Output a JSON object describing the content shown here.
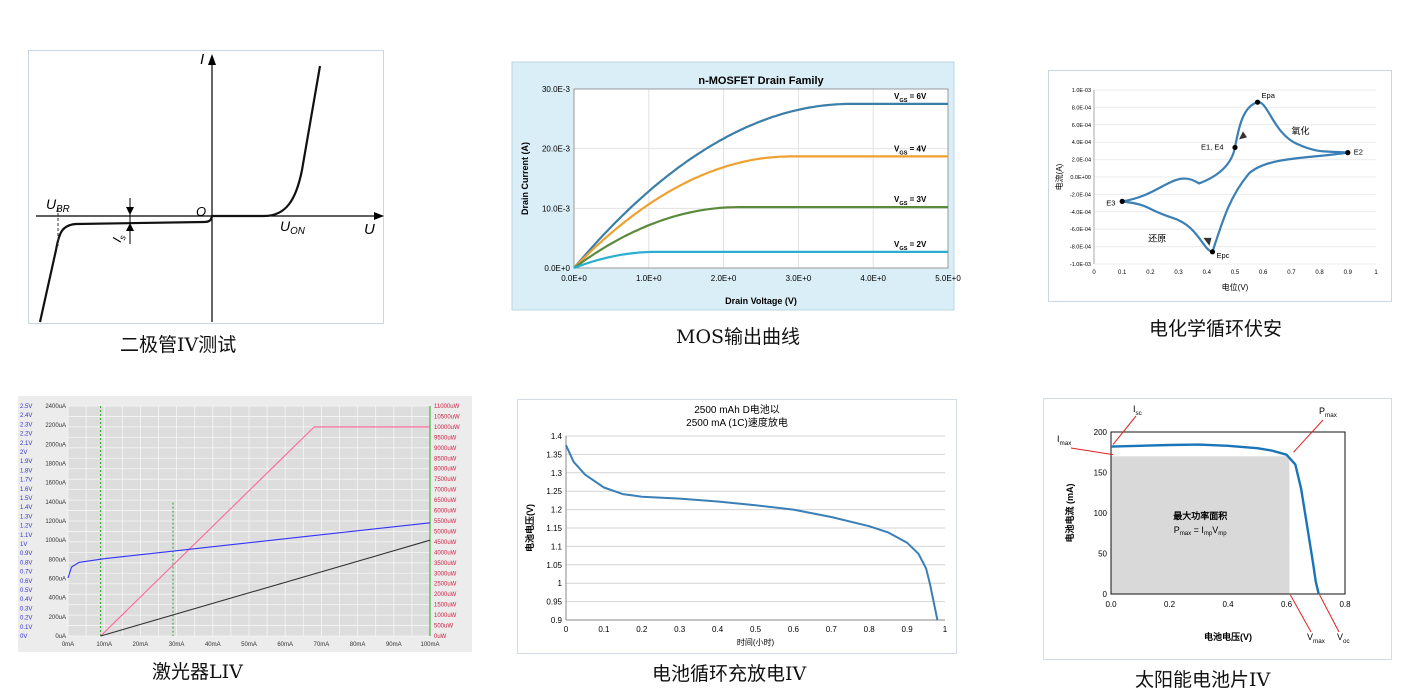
{
  "colors": {
    "blue_curve": "#3a7fb5",
    "mos_6v": "#3b7ea8",
    "mos_4v": "#f0a030",
    "mos_3v": "#5a8a3c",
    "mos_2v": "#2aaed0",
    "mos_bg": "#d9eef6",
    "liv_power": "#ff6699",
    "liv_voltage": "#3333ff",
    "liv_current": "#333333",
    "liv_marker": "#22aa22",
    "pv_fill": "#d9d9d9",
    "pv_curve": "#1a75b8",
    "arrow_red": "#e02020"
  },
  "captions": {
    "diode": "二极管IV测试",
    "mos": "MOS输出曲线",
    "cv": "电化学循环伏安",
    "liv": "激光器LIV",
    "battery": "电池循环充放电IV",
    "solar": "太阳能电池片IV"
  },
  "diode": {
    "y_axis": "I",
    "x_axis": "U",
    "origin": "O",
    "ubr": {
      "main": "U",
      "sub": "BR"
    },
    "uon": {
      "main": "U",
      "sub": "ON"
    },
    "is": {
      "main": "I",
      "sub": "s"
    }
  },
  "chart_data": [
    {
      "id": "diode",
      "type": "line",
      "title": "",
      "xlabel": "U",
      "ylabel": "I",
      "series": [
        {
          "values_desc": "reverse breakdown at U_BR, small reverse saturation current I_s, forward conduction beyond U_ON"
        }
      ]
    },
    {
      "id": "mos",
      "type": "line",
      "title": "n-MOSFET Drain Family",
      "xlabel": "Drain Voltage (V)",
      "ylabel": "Drain Current (A)",
      "xlim": [
        0,
        5
      ],
      "ylim": [
        0,
        0.03
      ],
      "x_ticks": [
        "0.0E+0",
        "1.0E+0",
        "2.0E+0",
        "3.0E+0",
        "4.0E+0",
        "5.0E+0"
      ],
      "y_ticks": [
        "0.0E+0",
        "10.0E-3",
        "20.0E-3",
        "30.0E-3"
      ],
      "grid": true,
      "series": [
        {
          "name": "VGS = 6V",
          "label_main": "V",
          "label_sub": "GS",
          "label_rest": "= 6V",
          "vsat": 3.7,
          "isat": 0.0275
        },
        {
          "name": "VGS = 4V",
          "label_main": "V",
          "label_sub": "GS",
          "label_rest": "= 4V",
          "vsat": 2.9,
          "isat": 0.0187
        },
        {
          "name": "VGS = 3V",
          "label_main": "V",
          "label_sub": "GS",
          "label_rest": "= 3V",
          "vsat": 2.2,
          "isat": 0.0102
        },
        {
          "name": "VGS = 2V",
          "label_main": "V",
          "label_sub": "GS",
          "label_rest": "= 2V",
          "vsat": 1.1,
          "isat": 0.0027
        }
      ]
    },
    {
      "id": "cv",
      "type": "line",
      "title": "",
      "xlabel": "电位(V)",
      "ylabel": "电流(A)",
      "xlim": [
        0,
        1
      ],
      "ylim": [
        -0.001,
        0.001
      ],
      "x_ticks": [
        "0",
        "0.1",
        "0.2",
        "0.3",
        "0.4",
        "0.5",
        "0.6",
        "0.7",
        "0.8",
        "0.9",
        "1"
      ],
      "y_ticks": [
        "-1.0E-03",
        "-8.0E-04",
        "-6.0E-04",
        "-4.0E-04",
        "-2.0E-04",
        "0.0E+00",
        "2.0E-04",
        "4.0E-04",
        "6.0E-04",
        "8.0E-04",
        "1.0E-03"
      ],
      "points": {
        "Epa": [
          0.58,
          0.00086
        ],
        "E1, E4": [
          0.5,
          0.00034
        ],
        "E2": [
          0.9,
          0.00028
        ],
        "E3": [
          0.1,
          -0.00028
        ],
        "Epc": [
          0.42,
          -0.00086
        ]
      },
      "annotations": [
        "氧化",
        "还原"
      ]
    },
    {
      "id": "liv",
      "type": "line",
      "title": "",
      "x_ticks": [
        "0mA",
        "10mA",
        "20mA",
        "30mA",
        "40mA",
        "50mA",
        "60mA",
        "70mA",
        "80mA",
        "90mA",
        "100mA"
      ],
      "y_left_voltage": [
        "0V",
        "0.1V",
        "0.2V",
        "0.3V",
        "0.4V",
        "0.5V",
        "0.6V",
        "0.7V",
        "0.8V",
        "0.9V",
        "1V",
        "1.1V",
        "1.2V",
        "1.3V",
        "1.4V",
        "1.5V",
        "1.6V",
        "1.7V",
        "1.8V",
        "1.9V",
        "2V",
        "2.1V",
        "2.2V",
        "2.3V",
        "2.4V",
        "2.5V"
      ],
      "y_left_current": [
        "0uA",
        "200uA",
        "400uA",
        "600uA",
        "800uA",
        "1000uA",
        "1200uA",
        "1400uA",
        "1600uA",
        "1800uA",
        "2000uA",
        "2200uA",
        "2400uA"
      ],
      "y_right_power": [
        "0uW",
        "500uW",
        "1000uW",
        "1500uW",
        "2000uW",
        "2500uW",
        "3000uW",
        "3500uW",
        "4000uW",
        "4500uW",
        "5000uW",
        "5500uW",
        "6000uW",
        "6500uW",
        "7000uW",
        "7500uW",
        "8000uW",
        "8500uW",
        "9000uW",
        "9500uW",
        "10000uW",
        "10500uW",
        "11000uW"
      ],
      "series": [
        {
          "kind": "power",
          "x": [
            9,
            68,
            100
          ],
          "y_uW": [
            0,
            10000,
            10000
          ]
        },
        {
          "kind": "voltage",
          "x": [
            0,
            1,
            3,
            10,
            100
          ],
          "y_V": [
            0.63,
            0.75,
            0.8,
            0.84,
            1.23
          ]
        },
        {
          "kind": "current",
          "x": [
            9,
            100
          ],
          "y_uA": [
            0,
            1000
          ]
        }
      ],
      "markers_x": [
        9,
        29,
        100
      ]
    },
    {
      "id": "battery",
      "type": "line",
      "title": "2500 mAh D电池以",
      "subtitle": "2500 mA (1C)速度放电",
      "xlabel": "时间(小时)",
      "ylabel": "电池电压(V)",
      "xlim": [
        0,
        1
      ],
      "ylim": [
        0.9,
        1.4
      ],
      "x_ticks": [
        "0",
        "0.1",
        "0.2",
        "0.3",
        "0.4",
        "0.5",
        "0.6",
        "0.7",
        "0.8",
        "0.9",
        "1"
      ],
      "y_ticks": [
        "0.9",
        "0.95",
        "1",
        "1.05",
        "1.1",
        "1.15",
        "1.2",
        "1.25",
        "1.3",
        "1.35",
        "1.4"
      ],
      "x": [
        0,
        0.02,
        0.05,
        0.1,
        0.15,
        0.2,
        0.3,
        0.4,
        0.5,
        0.6,
        0.7,
        0.8,
        0.85,
        0.9,
        0.93,
        0.95,
        0.96,
        0.97,
        0.98
      ],
      "values": [
        1.375,
        1.33,
        1.295,
        1.26,
        1.242,
        1.235,
        1.23,
        1.222,
        1.212,
        1.2,
        1.18,
        1.155,
        1.138,
        1.11,
        1.08,
        1.04,
        1.0,
        0.95,
        0.9
      ]
    },
    {
      "id": "solar",
      "type": "line",
      "title": "",
      "xlabel": "电池电压(V)",
      "ylabel": "电池电流 (mA)",
      "xlim": [
        0,
        0.8
      ],
      "ylim": [
        0,
        200
      ],
      "x_ticks": [
        "0.0",
        "0.2",
        "0.4",
        "0.6",
        "0.8"
      ],
      "y_ticks": [
        "0",
        "50",
        "100",
        "150",
        "200"
      ],
      "x": [
        0,
        0.1,
        0.2,
        0.3,
        0.4,
        0.5,
        0.55,
        0.6,
        0.63,
        0.65,
        0.67,
        0.69,
        0.7,
        0.71
      ],
      "values": [
        182,
        183,
        184,
        184.5,
        183,
        180,
        177,
        172,
        160,
        130,
        85,
        40,
        15,
        0
      ],
      "area_label": "最大功率面积",
      "formula": {
        "p": "P",
        "pmax_sub": "max",
        "eq": "= I",
        "imp_sub": "mp",
        "v": "V",
        "vmp_sub": "mp"
      },
      "labels": {
        "isc": {
          "main": "I",
          "sub": "sc"
        },
        "imax": {
          "main": "I",
          "sub": "max"
        },
        "pmax": {
          "main": "P",
          "sub": "max"
        },
        "vmax": {
          "main": "V",
          "sub": "max"
        },
        "voc": {
          "main": "V",
          "sub": "oc"
        }
      },
      "pmax_point": [
        0.61,
        170
      ]
    }
  ]
}
